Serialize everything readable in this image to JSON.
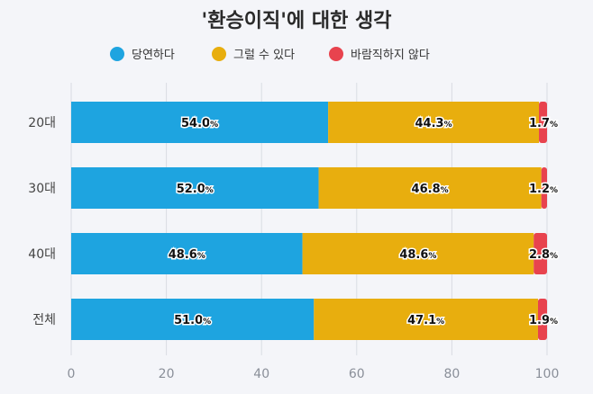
{
  "chart_data": {
    "type": "bar",
    "orientation": "horizontal",
    "stacked": true,
    "title": "'환승이직'에 대한 생각",
    "categories": [
      "20대",
      "30대",
      "40대",
      "전체"
    ],
    "series": [
      {
        "name": "당연하다",
        "color": "#1ea4e0",
        "values": [
          54.0,
          52.0,
          48.6,
          51.0
        ]
      },
      {
        "name": "그럴 수 있다",
        "color": "#e8ae0e",
        "values": [
          44.3,
          46.8,
          48.6,
          47.1
        ]
      },
      {
        "name": "바람직하지 않다",
        "color": "#e8434e",
        "values": [
          1.7,
          1.2,
          2.8,
          1.9
        ]
      }
    ],
    "value_suffix": "%",
    "xlim": [
      0,
      100
    ],
    "xticks": [
      0,
      20,
      40,
      60,
      80,
      100
    ],
    "grid": true,
    "legend_position": "top"
  }
}
